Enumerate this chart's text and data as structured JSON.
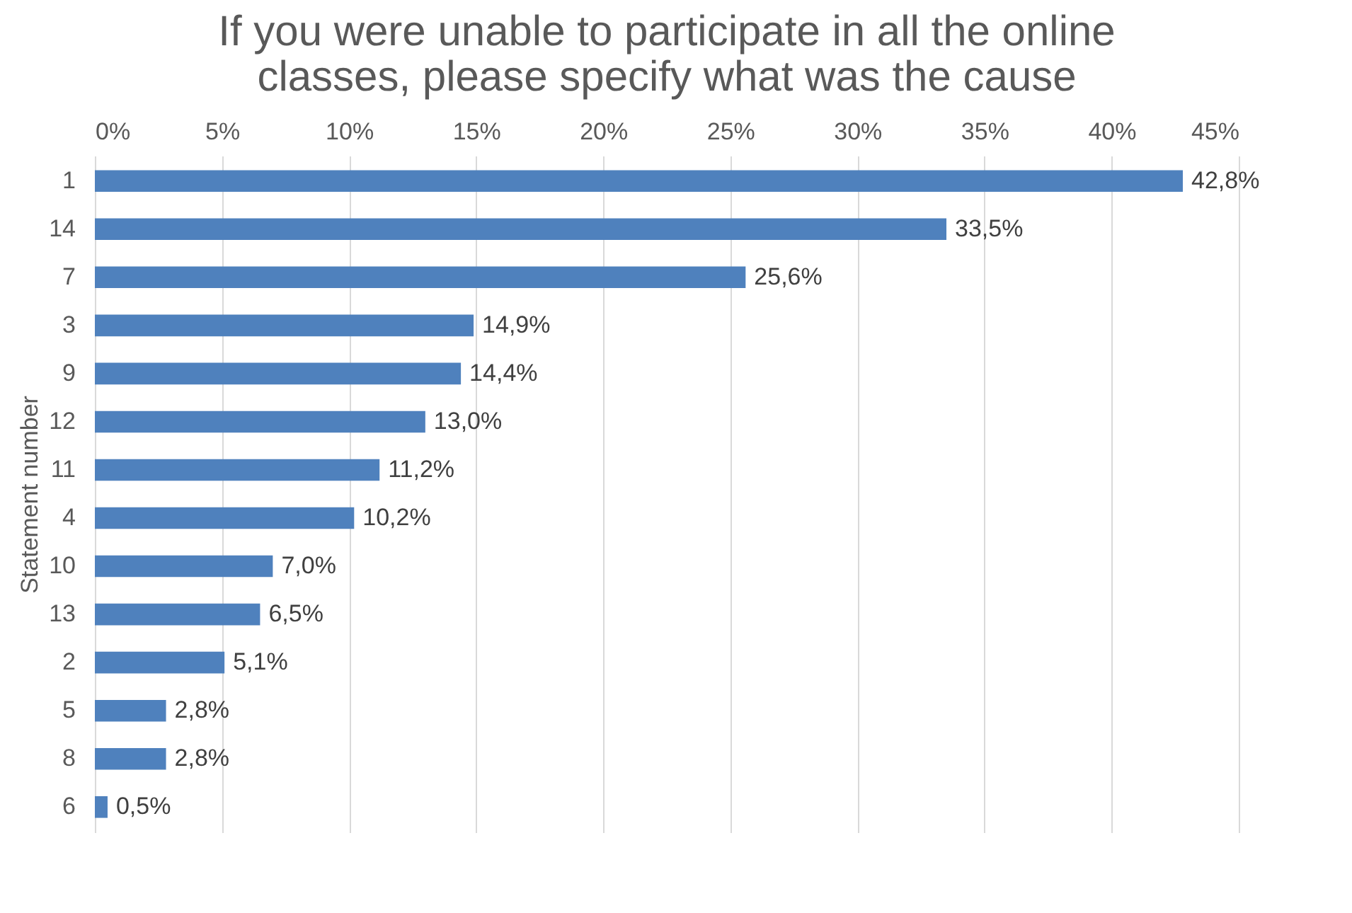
{
  "chart_data": {
    "type": "bar",
    "orientation": "horizontal",
    "title": "If you were unable to participate in all the online classes, please specify what was the cause",
    "ylabel": "Statement number",
    "categories": [
      "1",
      "14",
      "7",
      "3",
      "9",
      "12",
      "11",
      "4",
      "10",
      "13",
      "2",
      "5",
      "8",
      "6"
    ],
    "values": [
      42.8,
      33.5,
      25.6,
      14.9,
      14.4,
      13.0,
      11.2,
      10.2,
      7.0,
      6.5,
      5.1,
      2.8,
      2.8,
      0.5
    ],
    "value_labels": [
      "42,8%",
      "33,5%",
      "25,6%",
      "14,9%",
      "14,4%",
      "13,0%",
      "11,2%",
      "10,2%",
      "7,0%",
      "6,5%",
      "5,1%",
      "2,8%",
      "2,8%",
      "0,5%"
    ],
    "color": "#4f81bd",
    "xlim": [
      0,
      45
    ],
    "xticks": [
      {
        "value": 0,
        "label": "0%"
      },
      {
        "value": 5,
        "label": "5%"
      },
      {
        "value": 10,
        "label": "10%"
      },
      {
        "value": 15,
        "label": "15%"
      },
      {
        "value": 20,
        "label": "20%"
      },
      {
        "value": 25,
        "label": "25%"
      },
      {
        "value": 30,
        "label": "30%"
      },
      {
        "value": 35,
        "label": "35%"
      },
      {
        "value": 40,
        "label": "40%"
      },
      {
        "value": 45,
        "label": "45%"
      }
    ],
    "grid": "x"
  }
}
